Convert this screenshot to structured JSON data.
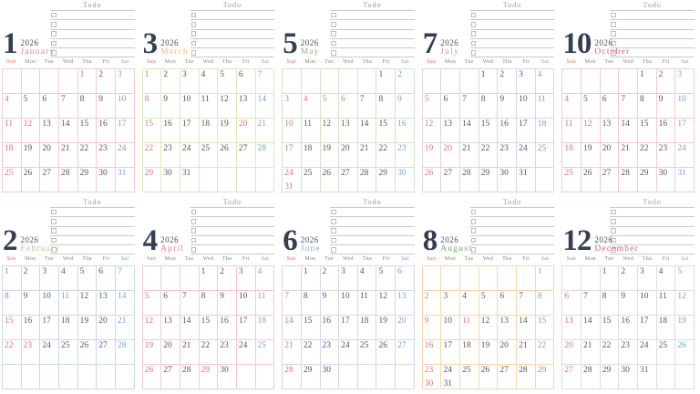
{
  "year": "2026",
  "todo": {
    "title": "Todo",
    "rows": 5
  },
  "weekdays": [
    "Sun",
    "Mon",
    "Tue",
    "Wed",
    "Thu",
    "Fri",
    "Sat"
  ],
  "legend": {
    "r": "sunday-or-holiday-red",
    "b": "saturday-blue",
    "k": "weekday-dark"
  },
  "colors": {
    "number": "#353f52",
    "year": "#474d5c",
    "red": "#d9707c",
    "blue": "#72a3c8",
    "weekday": "#53555f",
    "todo_line": "#c9c9cc"
  },
  "months": [
    {
      "num": "1",
      "name": "January",
      "name_color": "#e2808f",
      "border_color": "#f2cad0",
      "cells": [
        null,
        null,
        null,
        null,
        "1|r",
        "2|k",
        "3|b",
        "4|r",
        "5|k",
        "6|k",
        "7|k",
        "8|k",
        "9|k",
        "10|b",
        "11|r",
        "12|r",
        "13|k",
        "14|k",
        "15|k",
        "16|k",
        "17|b",
        "18|r",
        "19|k",
        "20|k",
        "21|k",
        "22|k",
        "23|k",
        "24|b",
        "25|r",
        "26|k",
        "27|k",
        "28|k",
        "29|k",
        "30|k",
        "31|b"
      ]
    },
    {
      "num": "3",
      "name": "March",
      "name_color": "#f0c05e",
      "border_color": "#dde8c0",
      "cells": [
        "1|r",
        "2|k",
        "3|k",
        "4|k",
        "5|k",
        "6|k",
        "7|b",
        "8|r",
        "9|k",
        "10|k",
        "11|k",
        "12|k",
        "13|k",
        "14|b",
        "15|r",
        "16|k",
        "17|k",
        "18|k",
        "19|k",
        "20|r",
        "21|b",
        "22|r",
        "23|k",
        "24|k",
        "25|k",
        "26|k",
        "27|k",
        "28|b",
        "29|r",
        "30|k",
        "31|k",
        null,
        null,
        null,
        null
      ]
    },
    {
      "num": "5",
      "name": "May",
      "name_color": "#8bba7e",
      "border_color": "#d3e3c6",
      "cells": [
        null,
        null,
        null,
        null,
        null,
        "1|k",
        "2|b",
        "3|r",
        "4|r",
        "5|r",
        "6|r",
        "7|k",
        "8|k",
        "9|b",
        "10|r",
        "11|k",
        "12|k",
        "13|k",
        "14|k",
        "15|k",
        "16|b",
        "17|r",
        "18|k",
        "19|k",
        "20|k",
        "21|k",
        "22|k",
        "23|b",
        "24|r|31|r",
        "25|k",
        "26|k",
        "27|k",
        "28|k",
        "29|k",
        "30|b"
      ]
    },
    {
      "num": "7",
      "name": "July",
      "name_color": "#b795d6",
      "border_color": "#ddd2ea",
      "cells": [
        null,
        null,
        null,
        "1|k",
        "2|k",
        "3|k",
        "4|b",
        "5|r",
        "6|k",
        "7|k",
        "8|k",
        "9|k",
        "10|k",
        "11|b",
        "12|r",
        "13|k",
        "14|k",
        "15|k",
        "16|k",
        "17|k",
        "18|b",
        "19|r",
        "20|r",
        "21|k",
        "22|k",
        "23|k",
        "24|k",
        "25|b",
        "26|r",
        "27|k",
        "28|k",
        "29|k",
        "30|k",
        "31|k",
        null
      ]
    },
    {
      "num": "10",
      "name": "October",
      "name_color": "#d45f72",
      "border_color": "#f2cad0",
      "cells": [
        null,
        null,
        null,
        null,
        "1|k",
        "2|k",
        "3|b",
        "4|r",
        "5|k",
        "6|k",
        "7|k",
        "8|k",
        "9|k",
        "10|b",
        "11|r",
        "12|r",
        "13|k",
        "14|k",
        "15|k",
        "16|k",
        "17|b",
        "18|r",
        "19|k",
        "20|k",
        "21|k",
        "22|k",
        "23|k",
        "24|b",
        "25|r",
        "26|k",
        "27|k",
        "28|k",
        "29|k",
        "30|k",
        "31|b"
      ]
    },
    {
      "num": "2",
      "name": "February",
      "name_color": "#abcb8a",
      "border_color": "#c9d7ee",
      "cells": [
        "1|r",
        "2|k",
        "3|k",
        "4|k",
        "5|k",
        "6|k",
        "7|b",
        "8|r",
        "9|k",
        "10|k",
        "11|r",
        "12|k",
        "13|k",
        "14|b",
        "15|r",
        "16|k",
        "17|k",
        "18|k",
        "19|k",
        "20|k",
        "21|b",
        "22|r",
        "23|r",
        "24|k",
        "25|k",
        "26|k",
        "27|k",
        "28|b",
        null,
        null,
        null,
        null,
        null,
        null,
        null
      ]
    },
    {
      "num": "4",
      "name": "April",
      "name_color": "#e2808f",
      "border_color": "#f2cad0",
      "cells": [
        null,
        null,
        null,
        "1|k",
        "2|k",
        "3|k",
        "4|b",
        "5|r",
        "6|k",
        "7|k",
        "8|k",
        "9|k",
        "10|k",
        "11|b",
        "12|r",
        "13|k",
        "14|k",
        "15|k",
        "16|k",
        "17|k",
        "18|b",
        "19|r",
        "20|k",
        "21|k",
        "22|k",
        "23|k",
        "24|k",
        "25|b",
        "26|r",
        "27|k",
        "28|k",
        "29|r",
        "30|k",
        null,
        null
      ]
    },
    {
      "num": "6",
      "name": "June",
      "name_color": "#92a8d6",
      "border_color": "#d4d6ea",
      "cells": [
        null,
        "1|k",
        "2|k",
        "3|k",
        "4|k",
        "5|k",
        "6|b",
        "7|r",
        "8|k",
        "9|k",
        "10|k",
        "11|k",
        "12|k",
        "13|b",
        "14|r",
        "15|k",
        "16|k",
        "17|k",
        "18|k",
        "19|k",
        "20|b",
        "21|r",
        "22|k",
        "23|k",
        "24|k",
        "25|k",
        "26|k",
        "27|b",
        "28|r",
        "29|k",
        "30|k",
        null,
        null,
        null,
        null
      ]
    },
    {
      "num": "8",
      "name": "August",
      "name_color": "#6cab6c",
      "border_color": "#f5d6ae",
      "cells": [
        null,
        null,
        null,
        null,
        null,
        null,
        "1|b",
        "2|r",
        "3|k",
        "4|k",
        "5|k",
        "6|k",
        "7|k",
        "8|b",
        "9|r",
        "10|k",
        "11|r",
        "12|k",
        "13|k",
        "14|k",
        "15|b",
        "16|r",
        "17|k",
        "18|k",
        "19|k",
        "20|k",
        "21|k",
        "22|b",
        "23|r|30|r",
        "24|k|31|k",
        "25|k",
        "26|k",
        "27|k",
        "28|k",
        "29|b"
      ]
    },
    {
      "num": "12",
      "name": "December",
      "name_color": "#d4616c",
      "border_color": "#dcdcdc",
      "cells": [
        null,
        null,
        "1|k",
        "2|k",
        "3|k",
        "4|k",
        "5|b",
        "6|r",
        "7|k",
        "8|k",
        "9|k",
        "10|k",
        "11|k",
        "12|b",
        "13|r",
        "14|k",
        "15|k",
        "16|k",
        "17|k",
        "18|k",
        "19|b",
        "20|r",
        "21|k",
        "22|k",
        "23|k",
        "24|k",
        "25|k",
        "26|b",
        "27|r",
        "28|k",
        "29|k",
        "30|k",
        "31|k",
        null,
        null
      ]
    }
  ]
}
